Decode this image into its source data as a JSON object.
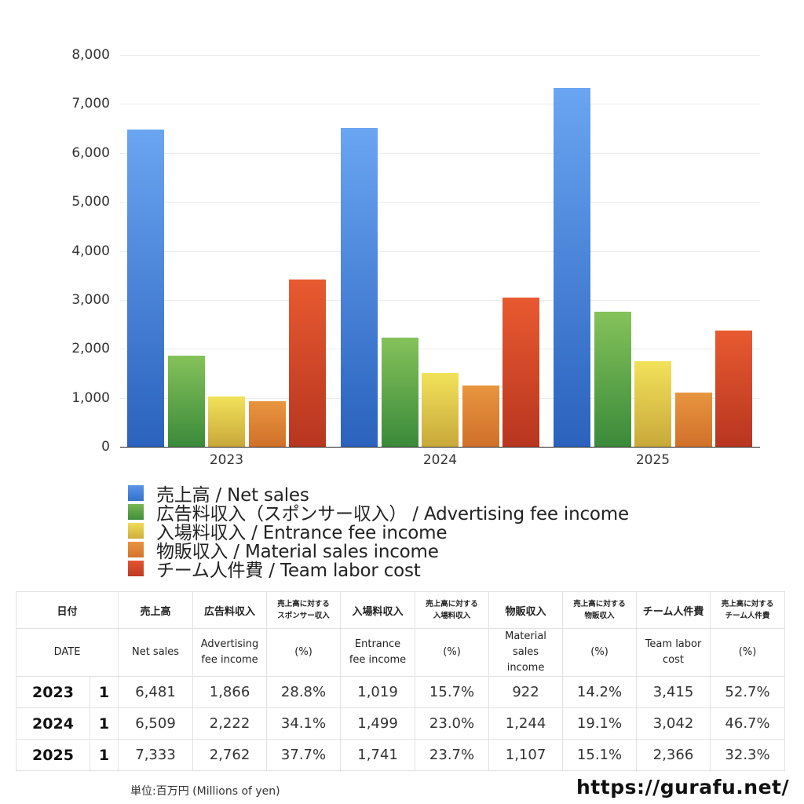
{
  "chart_data": {
    "type": "bar",
    "title": "",
    "xlabel": "",
    "ylabel": "",
    "ylim": [
      0,
      8000
    ],
    "yticks": [
      "0",
      "1,000",
      "2,000",
      "3,000",
      "4,000",
      "5,000",
      "6,000",
      "7,000",
      "8,000"
    ],
    "grid": true,
    "legend_position": "bottom",
    "categories": [
      "2023",
      "2024",
      "2025"
    ],
    "series": [
      {
        "name": "売上高 / Net sales",
        "values": [
          6481,
          6509,
          7333
        ],
        "color_top": "#6aa5f2",
        "color_bottom": "#2a62bd"
      },
      {
        "name": "広告料収入（スポンサー収入） / Advertising fee income",
        "values": [
          1866,
          2222,
          2762
        ],
        "color_top": "#85c25a",
        "color_bottom": "#3a8a3a"
      },
      {
        "name": "入場料収入 / Entrance fee income",
        "values": [
          1019,
          1499,
          1741
        ],
        "color_top": "#f2e25a",
        "color_bottom": "#c8a83a"
      },
      {
        "name": "物販収入 / Material sales income",
        "values": [
          922,
          1244,
          1107
        ],
        "color_top": "#e8953f",
        "color_bottom": "#d0702a"
      },
      {
        "name": "チーム人件費 / Team labor cost",
        "values": [
          3415,
          3042,
          2366
        ],
        "color_top": "#e85a30",
        "color_bottom": "#b83520"
      }
    ]
  },
  "legend": [
    {
      "label": "売上高 / Net sales",
      "color": "#4a86e0"
    },
    {
      "label": "広告料収入（スポンサー収入） / Advertising fee income",
      "color": "#5ca845"
    },
    {
      "label": "入場料収入 / Entrance fee income",
      "color": "#e6cc45"
    },
    {
      "label": "物販収入 / Material sales income",
      "color": "#e08535"
    },
    {
      "label": "チーム人件費 / Team labor cost",
      "color": "#d84a28"
    }
  ],
  "table": {
    "header_jp": {
      "date": "日付",
      "net_sales": "売上高",
      "ad": "広告料収入",
      "ad_pct_1": "売上高に対する",
      "ad_pct_2": "スポンサー収入",
      "entrance": "入場料収入",
      "ent_pct_1": "売上高に対する",
      "ent_pct_2": "入場料収入",
      "material": "物販収入",
      "mat_pct_1": "売上高に対する",
      "mat_pct_2": "物販収入",
      "labor": "チーム人件費",
      "lab_pct_1": "売上高に対する",
      "lab_pct_2": "チーム人件費"
    },
    "header_en": {
      "date": "DATE",
      "net_sales": "Net sales",
      "ad_1": "Advertising",
      "ad_2": "fee income",
      "ad_pct": "(%)",
      "entrance_1": "Entrance",
      "entrance_2": "fee income",
      "ent_pct": "(%)",
      "material_1": "Material",
      "material_2": "sales",
      "material_3": "income",
      "mat_pct": "(%)",
      "labor_1": "Team labor",
      "labor_2": "cost",
      "lab_pct": "(%)"
    },
    "rows": [
      {
        "year": "2023",
        "month": "1",
        "net_sales": "6,481",
        "ad": "1,866",
        "ad_pct": "28.8%",
        "entrance": "1,019",
        "ent_pct": "15.7%",
        "material": "922",
        "mat_pct": "14.2%",
        "labor": "3,415",
        "lab_pct": "52.7%"
      },
      {
        "year": "2024",
        "month": "1",
        "net_sales": "6,509",
        "ad": "2,222",
        "ad_pct": "34.1%",
        "entrance": "1,499",
        "ent_pct": "23.0%",
        "material": "1,244",
        "mat_pct": "19.1%",
        "labor": "3,042",
        "lab_pct": "46.7%"
      },
      {
        "year": "2025",
        "month": "1",
        "net_sales": "7,333",
        "ad": "2,762",
        "ad_pct": "37.7%",
        "entrance": "1,741",
        "ent_pct": "23.7%",
        "material": "1,107",
        "mat_pct": "15.1%",
        "labor": "2,366",
        "lab_pct": "32.3%"
      }
    ]
  },
  "footer": {
    "unit": "単位:百万円 (Millions of yen)",
    "site": "https://gurafu.net/"
  }
}
